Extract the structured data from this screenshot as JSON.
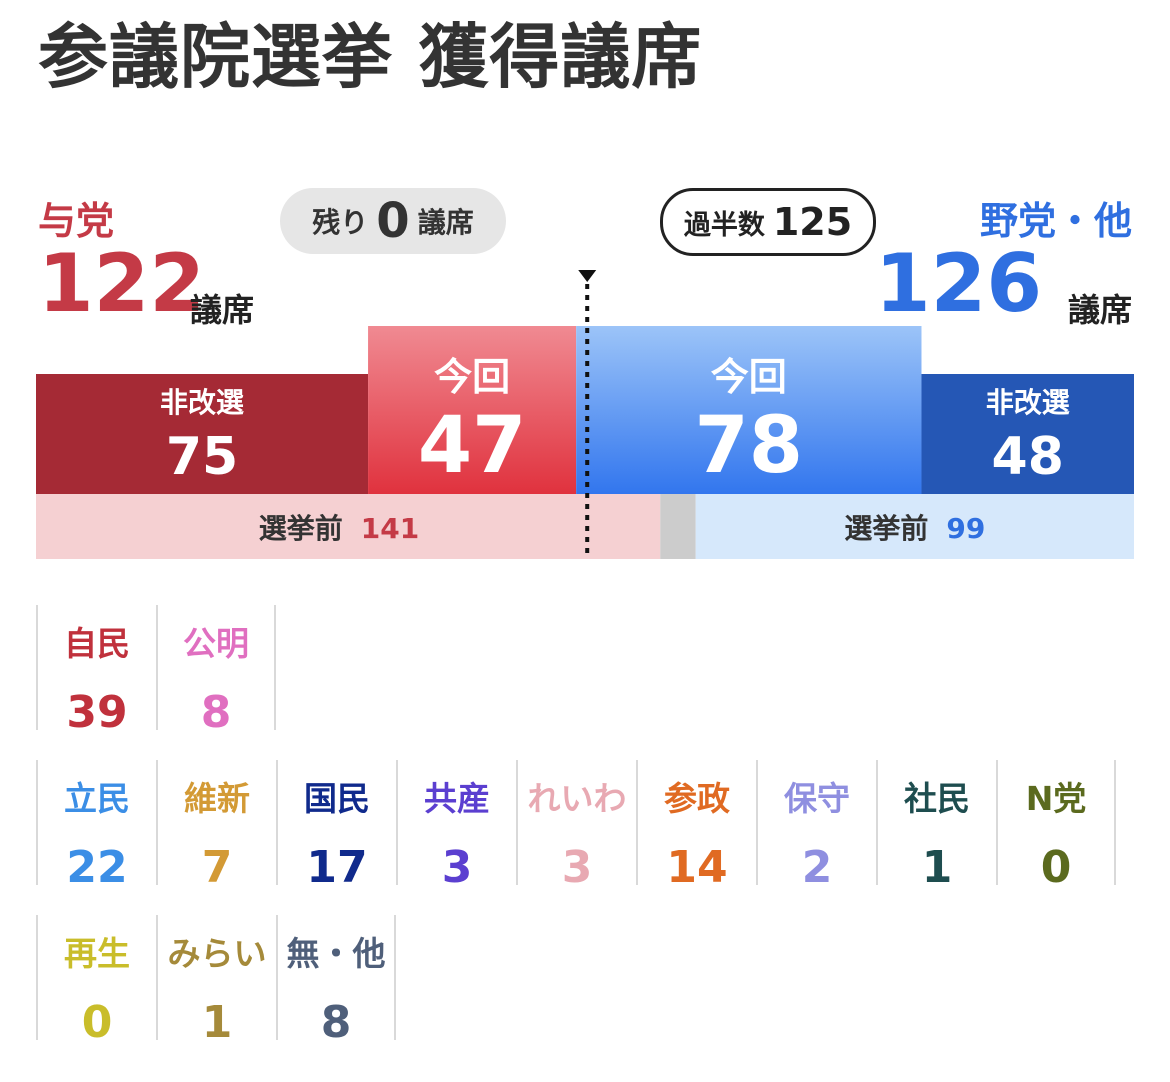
{
  "title": "参議院選挙 獲得議席",
  "header": {
    "ruling": {
      "label": "与党",
      "total": "122",
      "unit": "議席"
    },
    "opposition": {
      "label": "野党・他",
      "total": "126",
      "unit": "議席"
    },
    "remaining": {
      "prefix": "残り",
      "value": "0",
      "unit": "議席"
    },
    "majority": {
      "label": "過半数",
      "value": "125"
    }
  },
  "colors": {
    "ruling_noncontested": "#a52a35",
    "ruling_this": "#e23a45",
    "opp_this": "#3a7cf0",
    "opp_noncontested": "#2557b5",
    "ruling_prev_bg": "#f5d0d2",
    "opp_prev_bg": "#d6e8fb",
    "gap": "#cccccc"
  },
  "chart_data": {
    "type": "bar",
    "total_seats": 248,
    "majority": 125,
    "segments": [
      {
        "key": "ruling_noncontested",
        "label": "非改選",
        "value": 75
      },
      {
        "key": "ruling_this",
        "label": "今回",
        "value": 47
      },
      {
        "key": "opp_this",
        "label": "今回",
        "value": 78
      },
      {
        "key": "opp_noncontested",
        "label": "非改選",
        "value": 48
      }
    ],
    "before": {
      "label": "選挙前",
      "ruling": 141,
      "vacant": 8,
      "opposition": 99
    }
  },
  "parties": {
    "row1": [
      {
        "name": "自民",
        "seats": "39",
        "color": "#c0313c"
      },
      {
        "name": "公明",
        "seats": "8",
        "color": "#e06fc0"
      }
    ],
    "row2": [
      {
        "name": "立民",
        "seats": "22",
        "color": "#3b8ee6"
      },
      {
        "name": "維新",
        "seats": "7",
        "color": "#d39a35"
      },
      {
        "name": "国民",
        "seats": "17",
        "color": "#102a8c"
      },
      {
        "name": "共産",
        "seats": "3",
        "color": "#5b3fd0"
      },
      {
        "name": "れいわ",
        "seats": "3",
        "color": "#e8a9b2"
      },
      {
        "name": "参政",
        "seats": "14",
        "color": "#e06a22"
      },
      {
        "name": "保守",
        "seats": "2",
        "color": "#8f8fe0"
      },
      {
        "name": "社民",
        "seats": "1",
        "color": "#1e4d4f"
      },
      {
        "name": "N党",
        "seats": "0",
        "color": "#5b6a1e"
      }
    ],
    "row3": [
      {
        "name": "再生",
        "seats": "0",
        "color": "#c9bd2a"
      },
      {
        "name": "みらい",
        "seats": "1",
        "color": "#a58a3a"
      },
      {
        "name": "無・他",
        "seats": "8",
        "color": "#4f5f7a"
      }
    ]
  }
}
